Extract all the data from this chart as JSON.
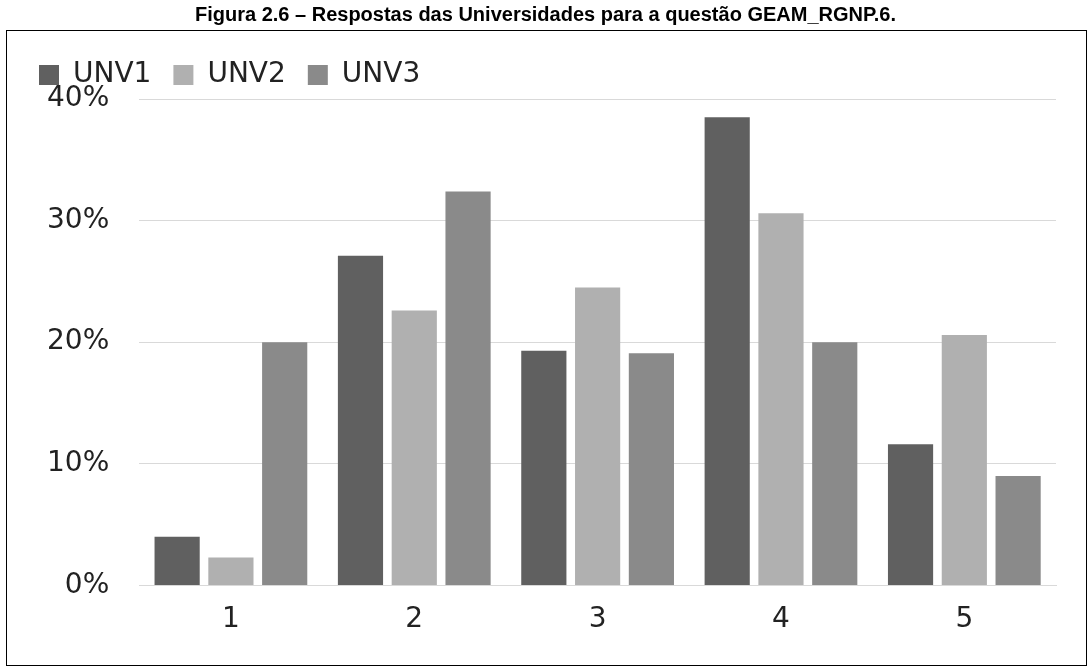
{
  "chart_data": {
    "type": "bar",
    "title": "Figura 2.6 – Respostas das Universidades para a questão GEAM_RGNP.6.",
    "categories": [
      "1",
      "2",
      "3",
      "4",
      "5"
    ],
    "series": [
      {
        "name": "UNV1",
        "color": "#606060",
        "values": [
          4.0,
          27.1,
          19.3,
          38.5,
          11.6
        ]
      },
      {
        "name": "UNV2",
        "color": "#b0b0b0",
        "values": [
          2.3,
          22.6,
          24.5,
          30.6,
          20.6
        ]
      },
      {
        "name": "UNV3",
        "color": "#8a8a8a",
        "values": [
          20.0,
          32.4,
          19.1,
          20.0,
          9.0
        ]
      }
    ],
    "ylim": [
      0,
      40
    ],
    "yticks": [
      {
        "value": 0,
        "label": "0%"
      },
      {
        "value": 10,
        "label": "10%"
      },
      {
        "value": 20,
        "label": "20%"
      },
      {
        "value": 30,
        "label": "30%"
      },
      {
        "value": 40,
        "label": "40%"
      }
    ],
    "grid": "y",
    "legend": "top left"
  }
}
